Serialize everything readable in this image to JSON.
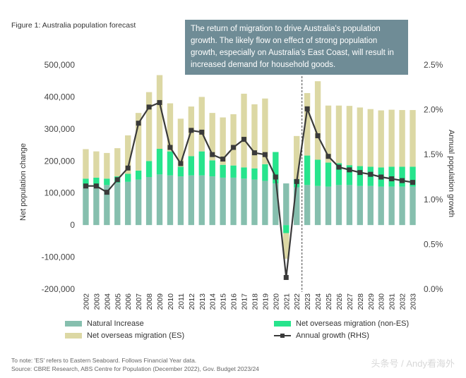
{
  "figure_title": "Figure 1: Australia population forecast",
  "callout_text": "The return of migration to drive Australia's population growth. The likely flow on effect of strong population growth, especially on Australia's East Coast, will result in increased demand for household goods.",
  "footnote_1": "To note: 'ES' refers to Eastern Seaboard. Follows Financial Year data.",
  "footnote_2": "Source: CBRE Research, ABS Centre for Population (December 2022), Gov. Budget 2023/24",
  "watermark": "头条号 / Andy看海外",
  "colors": {
    "natural_increase": "#86bfae",
    "nom_non_es": "#27e48c",
    "nom_es": "#dcd8a4",
    "growth_line": "#3a3a3a",
    "callout_bg": "#6f8c96"
  },
  "chart_data": {
    "type": "bar",
    "stacked": true,
    "categories": [
      "2002",
      "2003",
      "2004",
      "2005",
      "2006",
      "2007",
      "2008",
      "2009",
      "2010",
      "2011",
      "2012",
      "2013",
      "2014",
      "2015",
      "2016",
      "2017",
      "2018",
      "2019",
      "2020",
      "2021",
      "2022",
      "2023",
      "2024",
      "2025",
      "2026",
      "2027",
      "2028",
      "2029",
      "2030",
      "2031",
      "2032",
      "2033"
    ],
    "ylabel": "Net population change",
    "y2label": "Annual population growth",
    "ylim": [
      -200000,
      500000
    ],
    "yticks": [
      -200000,
      -100000,
      0,
      100000,
      200000,
      300000,
      400000,
      500000
    ],
    "ytick_labels": [
      "-200,000",
      "-100,000",
      "0",
      "100,000",
      "200,000",
      "300,000",
      "400,000",
      "500,000"
    ],
    "y2lim": [
      0.0,
      2.5
    ],
    "y2ticks": [
      0.0,
      0.5,
      1.0,
      1.5,
      2.0,
      2.5
    ],
    "y2tick_labels": [
      "0.0%",
      "0.5%",
      "1.0%",
      "1.5%",
      "2.0%",
      "2.5%"
    ],
    "forecast_start": "2023",
    "grid": false,
    "legend_position": "bottom",
    "series": [
      {
        "name": "Natural Increase",
        "values": [
          120000,
          120000,
          125000,
          132000,
          135000,
          142000,
          150000,
          158000,
          155000,
          152000,
          155000,
          155000,
          152000,
          148000,
          148000,
          145000,
          142000,
          138000,
          130000,
          130000,
          118000,
          125000,
          122000,
          120000,
          125000,
          125000,
          122000,
          122000,
          120000,
          120000,
          120000,
          120000
        ]
      },
      {
        "name": "Net overseas migration (non-ES)",
        "values": [
          25000,
          28000,
          20000,
          20000,
          25000,
          28000,
          50000,
          80000,
          75000,
          30000,
          60000,
          75000,
          50000,
          40000,
          38000,
          35000,
          35000,
          52000,
          98000,
          -25000,
          25000,
          92000,
          82000,
          75000,
          68000,
          62000,
          62000,
          60000,
          60000,
          62000,
          62000,
          62000
        ]
      },
      {
        "name": "Net overseas migration (ES)",
        "values": [
          92000,
          82000,
          80000,
          88000,
          120000,
          180000,
          215000,
          230000,
          150000,
          150000,
          155000,
          170000,
          148000,
          148000,
          160000,
          230000,
          200000,
          205000,
          0,
          -80000,
          135000,
          195000,
          245000,
          178000,
          180000,
          185000,
          183000,
          180000,
          178000,
          178000,
          177000,
          177000
        ]
      }
    ],
    "line_series": {
      "name": "Annual growth (RHS)",
      "axis": "right",
      "values": [
        1.15,
        1.15,
        1.08,
        1.22,
        1.35,
        1.85,
        2.03,
        2.08,
        1.58,
        1.4,
        1.77,
        1.75,
        1.5,
        1.45,
        1.58,
        1.67,
        1.52,
        1.5,
        1.25,
        0.13,
        1.2,
        2.01,
        1.71,
        1.48,
        1.36,
        1.33,
        1.3,
        1.28,
        1.25,
        1.23,
        1.21,
        1.19
      ]
    }
  }
}
